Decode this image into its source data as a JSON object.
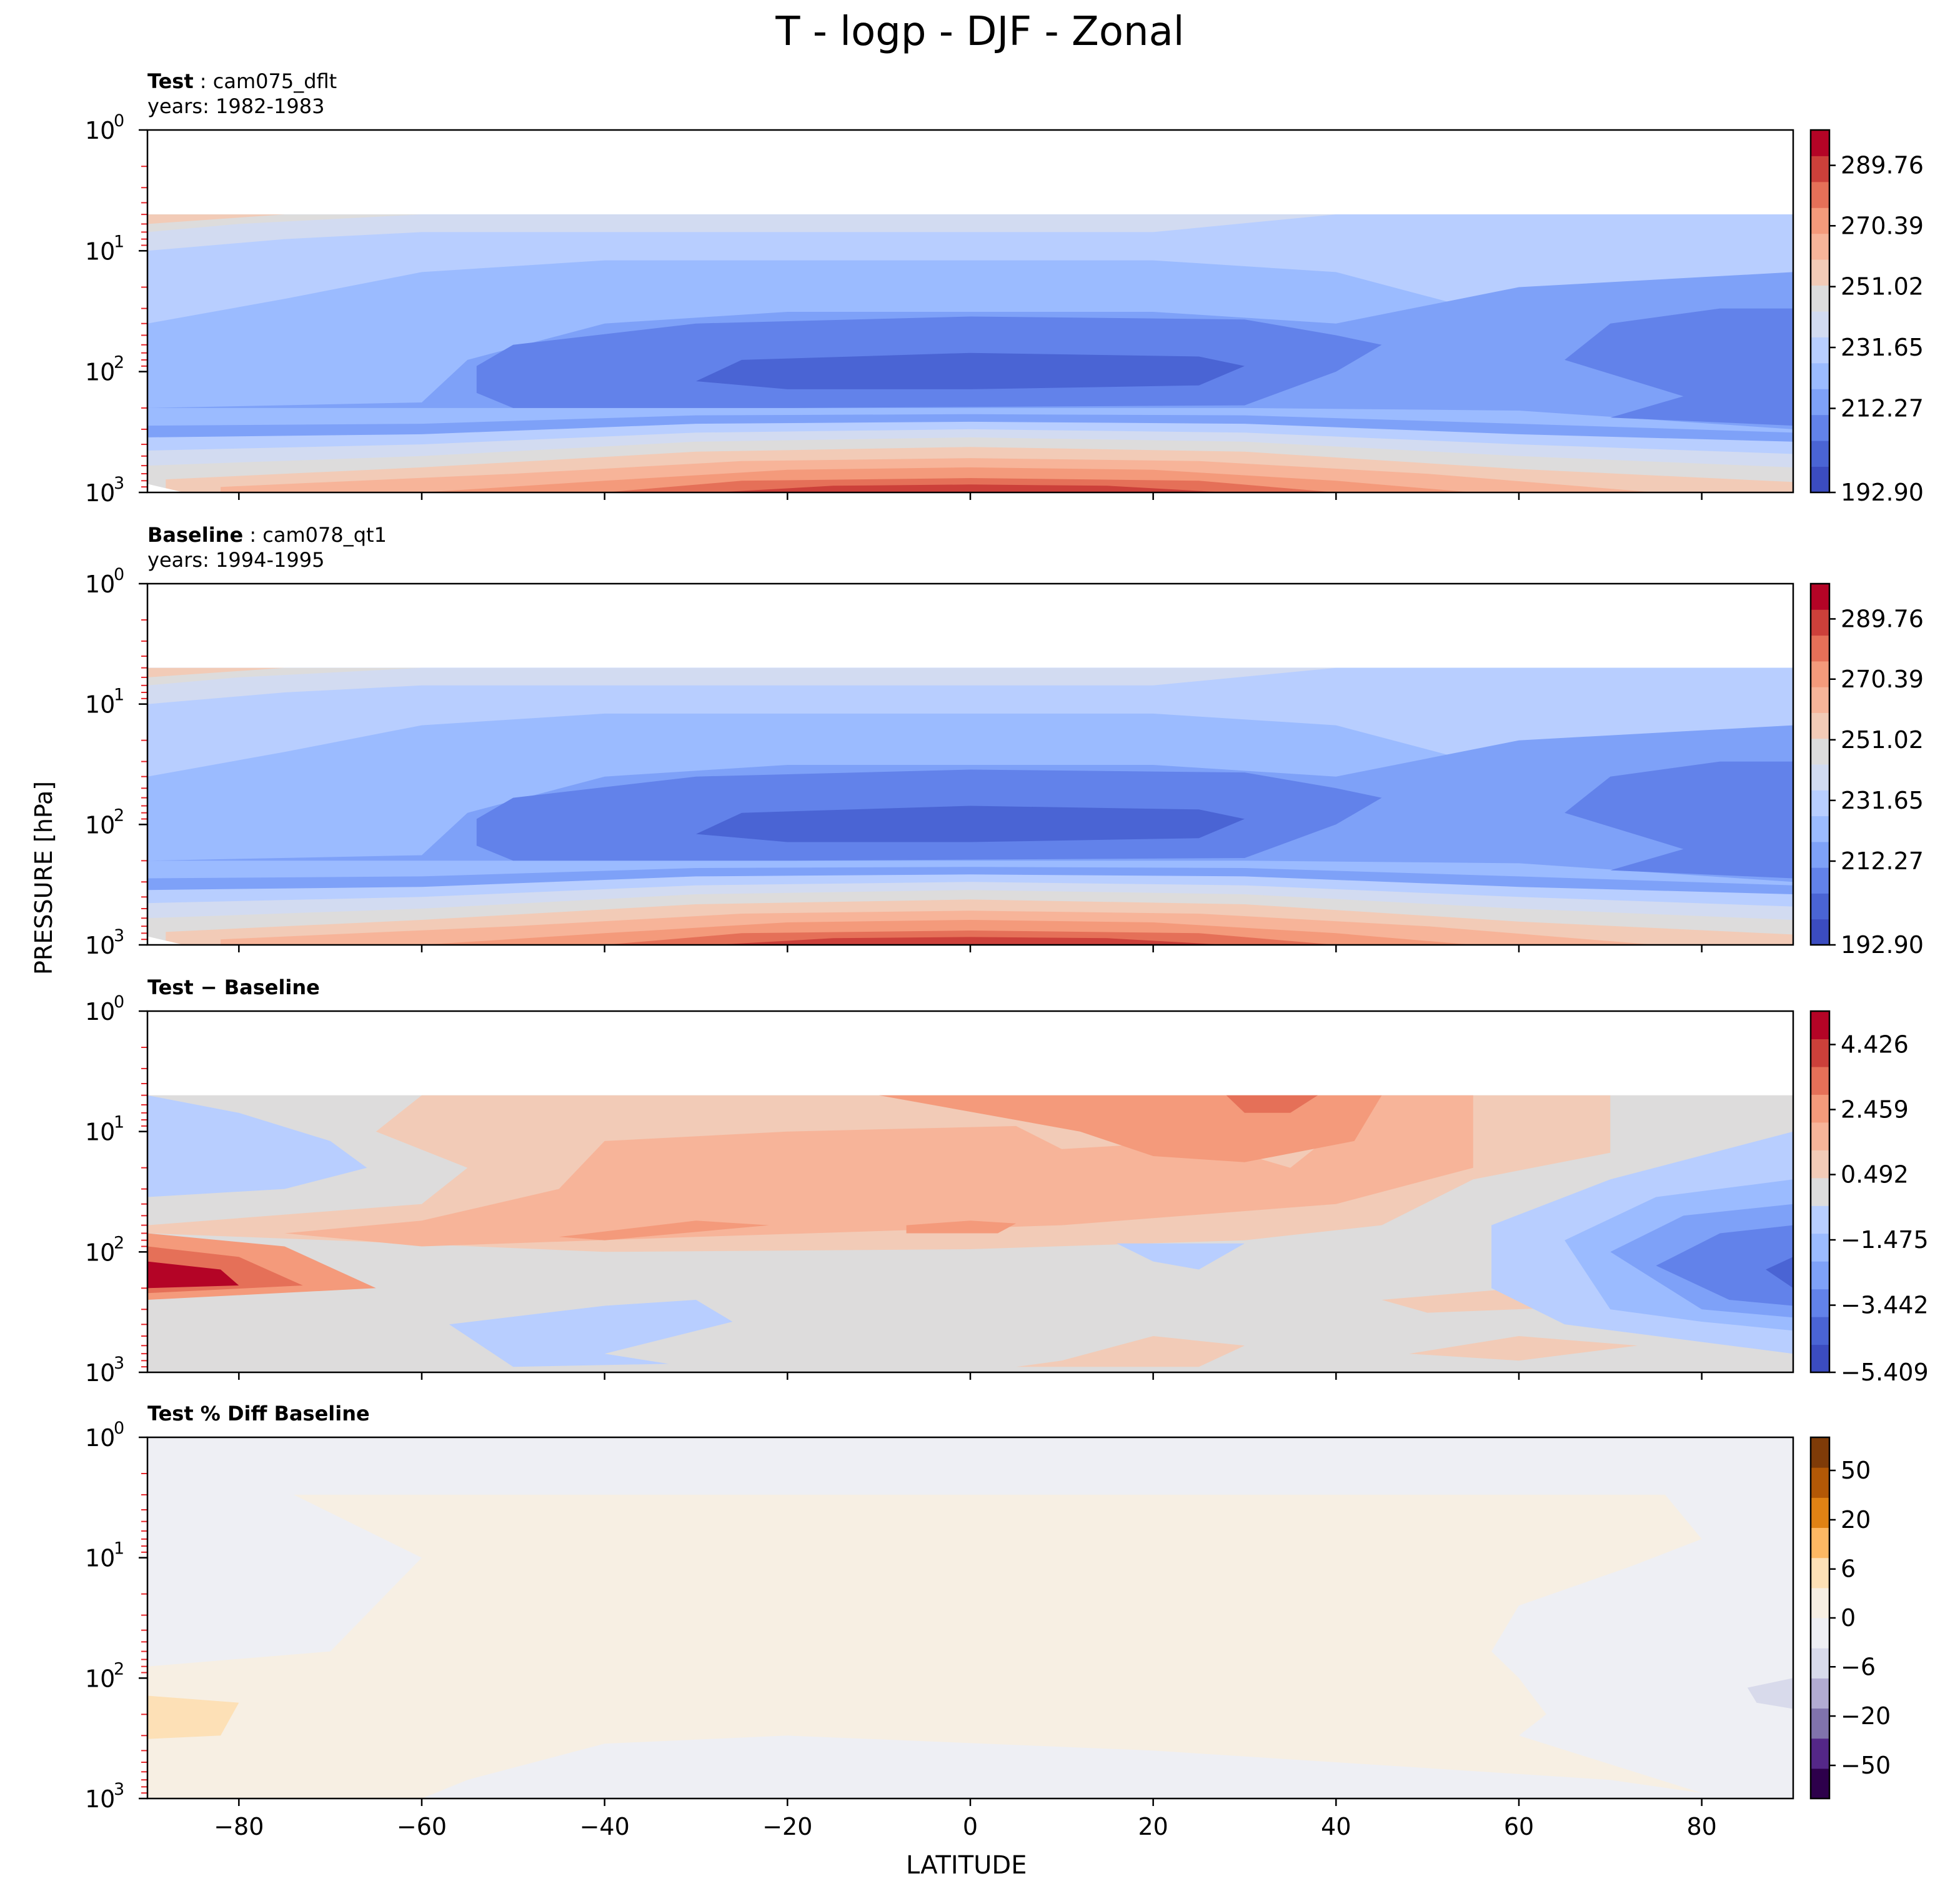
{
  "figure": {
    "title": "T - logp - DJF - Zonal",
    "ylabel": "PRESSURE [hPa]",
    "xlabel": "LATITUDE",
    "x_ticks": [
      "−80",
      "−60",
      "−40",
      "−20",
      "0",
      "20",
      "40",
      "60",
      "80"
    ],
    "y_ticks": [
      {
        "base": "10",
        "exp": "0"
      },
      {
        "base": "10",
        "exp": "1"
      },
      {
        "base": "10",
        "exp": "2"
      },
      {
        "base": "10",
        "exp": "3"
      }
    ]
  },
  "panels": [
    {
      "key": "test",
      "label_bold": "Test",
      "label_rest": " : cam075_dflt",
      "years": "years: 1982-1983"
    },
    {
      "key": "baseline",
      "label_bold": "Baseline",
      "label_rest": " : cam078_qt1",
      "years": "years: 1994-1995"
    },
    {
      "key": "diff",
      "label_bold": "Test − Baseline",
      "label_rest": "",
      "years": ""
    },
    {
      "key": "pct",
      "label_bold": "Test % Diff Baseline",
      "label_rest": "",
      "years": ""
    }
  ],
  "chart_data": [
    {
      "type": "contourf",
      "title": "Test : cam075_dflt",
      "subtitle": "years: 1982-1983",
      "xlabel": "LATITUDE",
      "ylabel": "PRESSURE [hPa]",
      "xlim": [
        -90,
        90
      ],
      "ylim": [
        1000,
        1
      ],
      "yscale": "log",
      "colorbar_ticks": [
        "289.76",
        "270.39",
        "251.02",
        "231.65",
        "212.27",
        "192.90"
      ],
      "colors": [
        "#3b4cc0",
        "#4a64d4",
        "#6282ea",
        "#7ea1f8",
        "#9bbbff",
        "#b8ceff",
        "#d2dbf1",
        "#dddcdc",
        "#f2cbb7",
        "#f7b499",
        "#f49a7b",
        "#e57058",
        "#cc403a",
        "#b40426"
      ]
    },
    {
      "type": "contourf",
      "title": "Baseline : cam078_qt1",
      "subtitle": "years: 1994-1995",
      "xlabel": "LATITUDE",
      "ylabel": "PRESSURE [hPa]",
      "xlim": [
        -90,
        90
      ],
      "ylim": [
        1000,
        1
      ],
      "yscale": "log",
      "colorbar_ticks": [
        "289.76",
        "270.39",
        "251.02",
        "231.65",
        "212.27",
        "192.90"
      ],
      "colors": [
        "#3b4cc0",
        "#4a64d4",
        "#6282ea",
        "#7ea1f8",
        "#9bbbff",
        "#b8ceff",
        "#d2dbf1",
        "#dddcdc",
        "#f2cbb7",
        "#f7b499",
        "#f49a7b",
        "#e57058",
        "#cc403a",
        "#b40426"
      ]
    },
    {
      "type": "contourf",
      "title": "Test − Baseline",
      "xlabel": "LATITUDE",
      "ylabel": "PRESSURE [hPa]",
      "xlim": [
        -90,
        90
      ],
      "ylim": [
        1000,
        1
      ],
      "yscale": "log",
      "colorbar_ticks": [
        "4.426",
        "2.459",
        "0.492",
        "−1.475",
        "−3.442",
        "−5.409"
      ],
      "colors": [
        "#3b4cc0",
        "#4a64d4",
        "#6282ea",
        "#7ea1f8",
        "#9bbbff",
        "#b8ceff",
        "#dddcdc",
        "#f2cbb7",
        "#f7b499",
        "#f49a7b",
        "#e57058",
        "#cc403a",
        "#b40426"
      ]
    },
    {
      "type": "contourf",
      "title": "Test % Diff Baseline",
      "xlabel": "LATITUDE",
      "ylabel": "PRESSURE [hPa]",
      "xlim": [
        -90,
        90
      ],
      "ylim": [
        1000,
        1
      ],
      "yscale": "log",
      "colorbar_ticks": [
        "50",
        "20",
        "6",
        "0",
        "−6",
        "−20",
        "−50"
      ],
      "colors": [
        "#2d004b",
        "#542788",
        "#8073ac",
        "#b2abd2",
        "#d8daeb",
        "#eeeff4",
        "#f7efe3",
        "#fde0b6",
        "#fdb863",
        "#e08214",
        "#b35806",
        "#7f3b08"
      ]
    }
  ]
}
